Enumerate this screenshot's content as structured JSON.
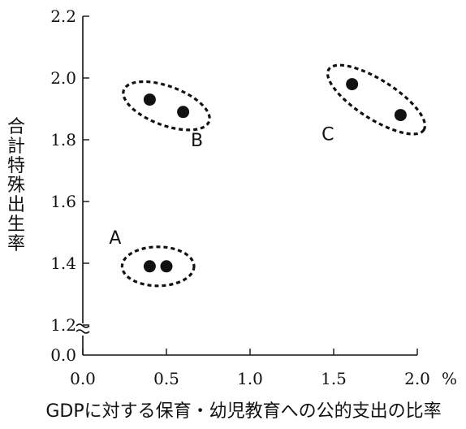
{
  "chart_data": {
    "type": "scatter",
    "title": "",
    "xlabel": "GDPに対する保育・幼児教育への公的支出の比率",
    "ylabel": "合計特殊出生率",
    "x_unit": "%",
    "xlim": [
      0.0,
      2.0
    ],
    "ylim_display": [
      1.1,
      2.2
    ],
    "y_axis_break": true,
    "y_zero_label": "0.0",
    "x_ticks": [
      "0.0",
      "0.5",
      "1.0",
      "1.5",
      "2.0"
    ],
    "y_ticks": [
      "1.2",
      "1.4",
      "1.6",
      "1.8",
      "2.0",
      "2.2"
    ],
    "grid": false,
    "series": [
      {
        "points": [
          {
            "x": 0.4,
            "y": 1.39
          },
          {
            "x": 0.5,
            "y": 1.39
          },
          {
            "x": 0.4,
            "y": 1.93
          },
          {
            "x": 0.6,
            "y": 1.89
          },
          {
            "x": 1.61,
            "y": 1.98
          },
          {
            "x": 1.9,
            "y": 1.88
          }
        ]
      }
    ],
    "clusters": [
      {
        "label": "A",
        "points": [
          0,
          1
        ]
      },
      {
        "label": "B",
        "points": [
          2,
          3
        ]
      },
      {
        "label": "C",
        "points": [
          4,
          5
        ]
      }
    ]
  }
}
